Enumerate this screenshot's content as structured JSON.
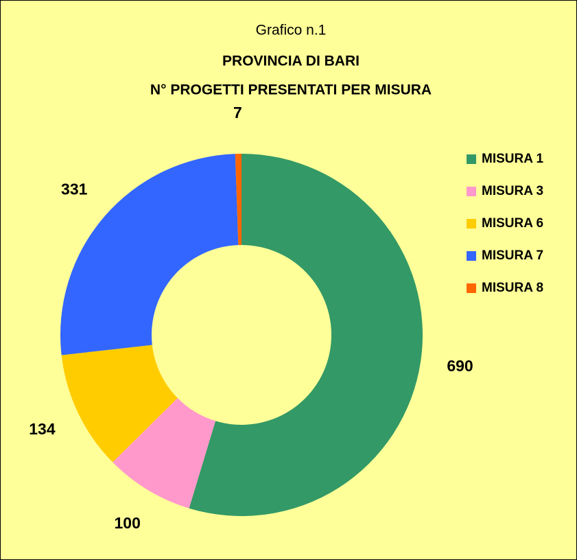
{
  "chart_data": {
    "type": "donut",
    "title": "Grafico n.1",
    "subtitle": [
      "PROVINCIA DI BARI",
      "N° PROGETTI PRESENTATI PER MISURA"
    ],
    "categories": [
      "MISURA 1",
      "MISURA 3",
      "MISURA 6",
      "MISURA 7",
      "MISURA 8"
    ],
    "values": [
      690,
      100,
      134,
      331,
      7
    ],
    "colors": [
      "#339966",
      "#FF99CC",
      "#FFCC00",
      "#3366FF",
      "#FF6600"
    ],
    "legend": "right"
  }
}
